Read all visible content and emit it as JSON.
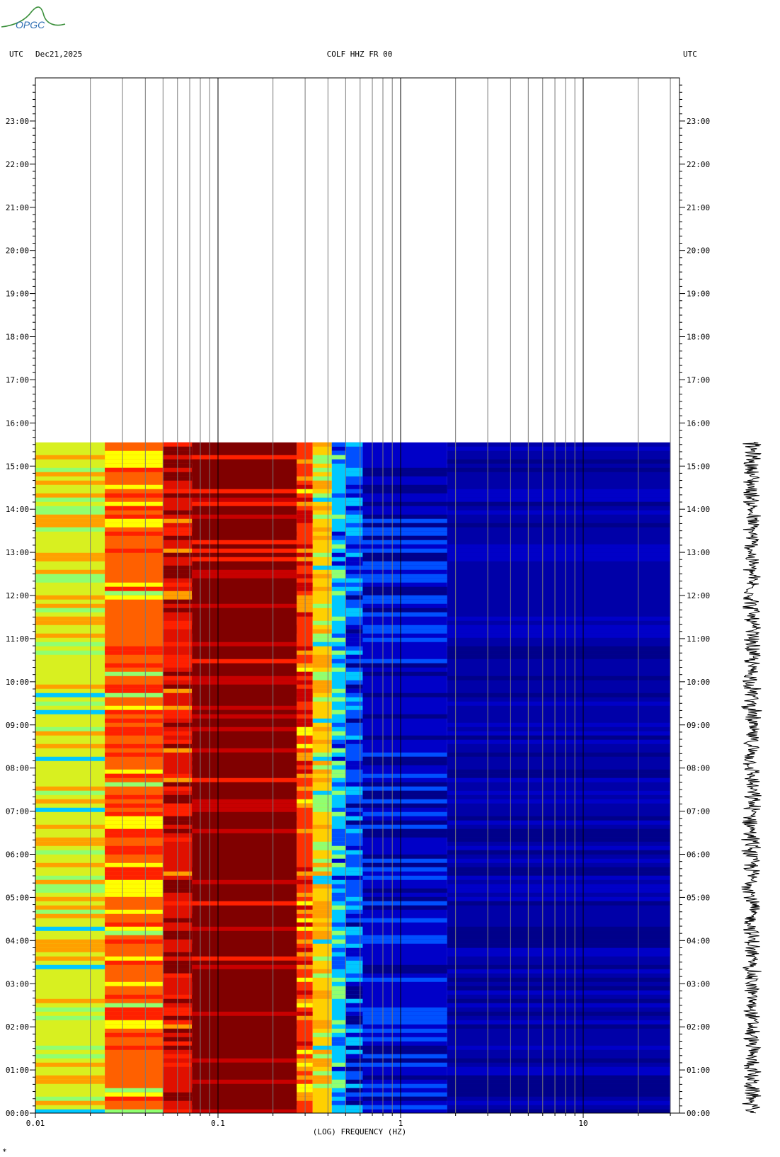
{
  "logo": {
    "text": "OPGC",
    "colors": {
      "text": "#2f6fb3",
      "swoosh": "#3a8f3a"
    }
  },
  "header": {
    "left_tz": "UTC",
    "date": "Dec21,2025",
    "station": "COLF HHZ FR 00",
    "right_tz": "UTC"
  },
  "footer_mark": "*",
  "chart_data": {
    "type": "heatmap",
    "title": "COLF HHZ FR 00",
    "xlabel": "(LOG) FREQUENCY (HZ)",
    "ylabel": "",
    "x_scale": "log",
    "xlim": [
      0.01,
      30
    ],
    "x_ticks": [
      {
        "value": 0.01,
        "label": "0.01"
      },
      {
        "value": 0.1,
        "label": "0.1"
      },
      {
        "value": 1,
        "label": "1"
      },
      {
        "value": 10,
        "label": "10"
      }
    ],
    "y_unit": "hour UTC",
    "ylim": [
      0,
      24
    ],
    "y_ticks": [
      "00:00",
      "01:00",
      "02:00",
      "03:00",
      "04:00",
      "05:00",
      "06:00",
      "07:00",
      "08:00",
      "09:00",
      "10:00",
      "11:00",
      "12:00",
      "13:00",
      "14:00",
      "15:00",
      "16:00",
      "17:00",
      "18:00",
      "19:00",
      "20:00",
      "21:00",
      "22:00",
      "23:00"
    ],
    "data_end_hour": 15.55,
    "colormap": [
      "#00008a",
      "#0000c8",
      "#0050ff",
      "#00c8ff",
      "#90ff70",
      "#ffff00",
      "#ffa000",
      "#ff2000",
      "#c80000",
      "#800000"
    ],
    "spectrum_bands": [
      {
        "f_from": 0.01,
        "f_to": 0.024,
        "level": "yellow-green",
        "color": "#d8f020"
      },
      {
        "f_from": 0.024,
        "f_to": 0.05,
        "level": "orange-red",
        "color": "#ff6000"
      },
      {
        "f_from": 0.05,
        "f_to": 0.072,
        "level": "red",
        "color": "#e01000"
      },
      {
        "f_from": 0.072,
        "f_to": 0.27,
        "level": "saturated",
        "color": "#800000"
      },
      {
        "f_from": 0.27,
        "f_to": 0.33,
        "level": "red-orange",
        "color": "#ff3000"
      },
      {
        "f_from": 0.33,
        "f_to": 0.42,
        "level": "yellow",
        "color": "#ffd000"
      },
      {
        "f_from": 0.42,
        "f_to": 0.5,
        "level": "cyan",
        "color": "#00c8ff"
      },
      {
        "f_from": 0.5,
        "f_to": 0.62,
        "level": "blue",
        "color": "#0050ff"
      },
      {
        "f_from": 0.62,
        "f_to": 1.8,
        "level": "dark blue",
        "color": "#0000c8"
      },
      {
        "f_from": 1.8,
        "f_to": 30,
        "level": "navy",
        "color": "#0000a8"
      }
    ],
    "waveform_trace": {
      "hour_from": 0,
      "hour_to": 15.55
    },
    "grid": true
  }
}
